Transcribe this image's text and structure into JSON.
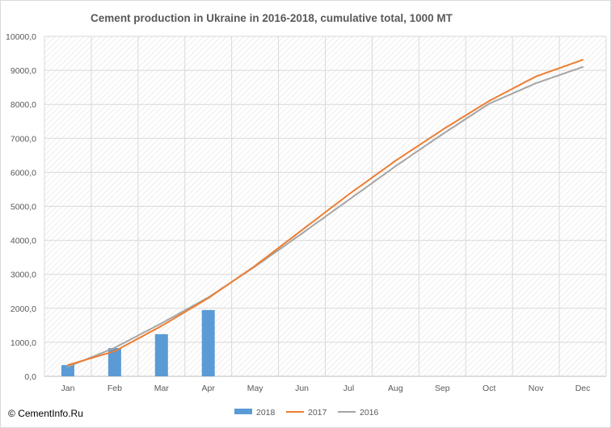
{
  "chart_data": {
    "type": "bar+line",
    "title": "Cement production in Ukraine in 2016-2018,  cumulative total, 1000 MT",
    "xlabel": "",
    "ylabel": "",
    "categories": [
      "Jan",
      "Feb",
      "Mar",
      "Apr",
      "May",
      "Jun",
      "Jul",
      "Aug",
      "Sep",
      "Oct",
      "Nov",
      "Dec"
    ],
    "ylim": [
      0,
      10000
    ],
    "ytick_labels": [
      "0,0",
      "1000,0",
      "2000,0",
      "3000,0",
      "4000,0",
      "5000,0",
      "6000,0",
      "7000,0",
      "8000,0",
      "9000,0",
      "10000,0"
    ],
    "grid": true,
    "legend_position": "bottom",
    "series": [
      {
        "name": "2018",
        "kind": "bar",
        "color": "#5b9bd5",
        "values": [
          330,
          830,
          1240,
          1950,
          null,
          null,
          null,
          null,
          null,
          null,
          null,
          null
        ]
      },
      {
        "name": "2017",
        "kind": "line",
        "color": "#ed7d31",
        "values": [
          330,
          740,
          1480,
          2300,
          3250,
          4300,
          5350,
          6340,
          7250,
          8100,
          8820,
          9310
        ]
      },
      {
        "name": "2016",
        "kind": "line",
        "color": "#a5a5a5",
        "values": [
          280,
          840,
          1560,
          2320,
          3230,
          4200,
          5190,
          6180,
          7120,
          8020,
          8620,
          9100
        ]
      }
    ]
  },
  "footer": {
    "copyright_symbol": "©",
    "site": "CementInfo.Ru"
  }
}
